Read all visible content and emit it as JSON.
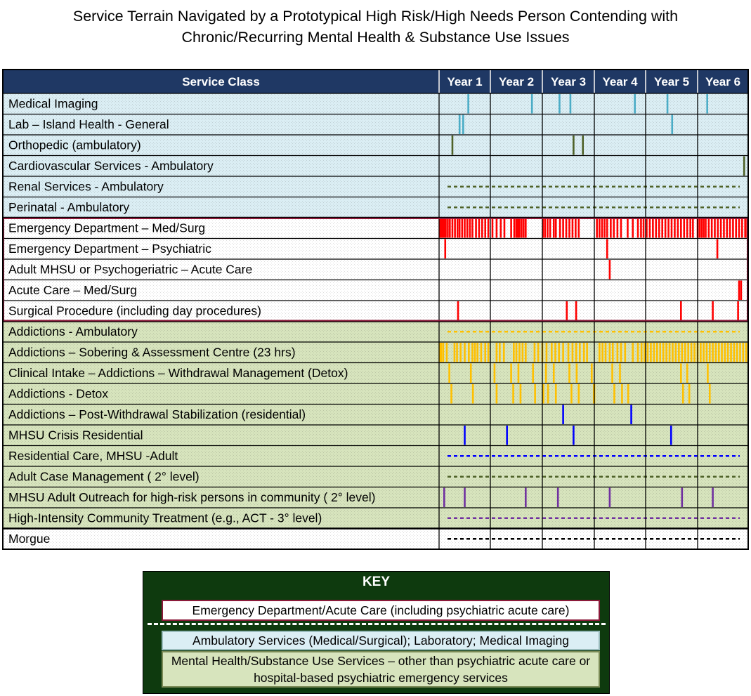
{
  "title": {
    "line1": "Service Terrain Navigated by a Prototypical High Risk/High Needs Person Contending with",
    "line2": "Chronic/Recurring Mental Health & Substance Use Issues"
  },
  "colors": {
    "header_bg": "#1f3864",
    "ambulatory_bg": "#dbeef4",
    "acute_bg": "#ffffff",
    "mhsu_bg": "#d7e4bd",
    "morgue_bg": "#ffffff",
    "acute_border": "#8b1a3a",
    "key_bg": "#0e3a0e"
  },
  "chart_data": {
    "type": "timeline",
    "header": "Service Class",
    "years": [
      "Year 1",
      "Year 2",
      "Year 3",
      "Year 4",
      "Year 5",
      "Year 6"
    ],
    "x_unit": "year",
    "xlim": [
      0,
      6
    ],
    "rows": [
      {
        "label": "Medical Imaging",
        "group": "ambulatory",
        "color": "#4bacc6",
        "events": [
          0.57,
          1.8,
          2.33,
          2.54,
          3.79,
          4.42,
          5.19
        ]
      },
      {
        "label": "Lab – Island Health - General",
        "group": "ambulatory",
        "color": "#4bacc6",
        "events": [
          0.4,
          0.47,
          4.51
        ]
      },
      {
        "label": "Orthopedic (ambulatory)",
        "group": "ambulatory",
        "color": "#4f6228",
        "events": [
          0.26,
          2.6,
          2.78
        ]
      },
      {
        "label": "Cardiovascular Services - Ambulatory",
        "group": "ambulatory",
        "color": "#4f6228",
        "events": [
          5.92
        ]
      },
      {
        "label": "Renal Services - Ambulatory",
        "group": "ambulatory",
        "color": "#4f6228",
        "dashed": true,
        "events": []
      },
      {
        "label": "Perinatal - Ambulatory",
        "group": "ambulatory",
        "color": "#4f6228",
        "dashed": true,
        "events": []
      },
      {
        "label": "Emergency Department – Med/Surg",
        "group": "acute",
        "color": "#ff0000",
        "events": [
          0.01,
          0.04,
          0.07,
          0.1,
          0.13,
          0.17,
          0.21,
          0.26,
          0.31,
          0.36,
          0.4,
          0.45,
          0.5,
          0.55,
          0.6,
          0.65,
          0.72,
          0.78,
          0.84,
          0.9,
          0.96,
          1.04,
          1.12,
          1.2,
          1.27,
          1.4,
          1.46,
          1.5,
          1.53,
          1.56,
          1.6,
          1.64,
          1.68,
          2.01,
          2.05,
          2.1,
          2.15,
          2.22,
          2.26,
          2.34,
          2.4,
          2.46,
          2.52,
          2.58,
          2.64,
          2.7,
          3.05,
          3.1,
          3.15,
          3.2,
          3.25,
          3.32,
          3.38,
          3.45,
          3.52,
          3.65,
          3.75,
          3.85,
          3.91,
          3.96,
          4.02,
          4.08,
          4.14,
          4.2,
          4.26,
          4.32,
          4.38,
          4.44,
          4.5,
          4.56,
          4.62,
          4.68,
          4.74,
          4.8,
          4.86,
          4.91,
          5.0,
          5.04,
          5.08,
          5.12,
          5.16,
          5.22,
          5.28,
          5.34,
          5.4,
          5.46,
          5.52,
          5.58,
          5.64,
          5.7,
          5.76,
          5.82,
          5.88,
          5.94,
          5.98
        ]
      },
      {
        "label": "Emergency Department – Psychiatric",
        "group": "acute",
        "color": "#ff0000",
        "events": [
          0.12,
          3.25,
          5.39
        ]
      },
      {
        "label": "Adult MHSU or Psychogeriatric – Acute Care",
        "group": "acute",
        "color": "#ff0000",
        "events": [
          3.3
        ]
      },
      {
        "label": "Acute Care – Med/Surg",
        "group": "acute",
        "color": "#ff0000",
        "events": [
          5.82,
          5.86
        ]
      },
      {
        "label": "Surgical Procedure (including day procedures)",
        "group": "acute",
        "color": "#ff0000",
        "events": [
          0.37,
          2.47,
          2.65,
          4.68,
          5.3,
          5.8
        ]
      },
      {
        "label": "Addictions - Ambulatory",
        "group": "mhsu",
        "color": "#ffc000",
        "dashed": true,
        "events": []
      },
      {
        "label": "Addictions – Sobering & Assessment Centre (23 hrs)",
        "group": "mhsu",
        "color": "#ffc000",
        "events": [
          0.01,
          0.04,
          0.08,
          0.15,
          0.3,
          0.35,
          0.42,
          0.5,
          0.58,
          0.65,
          0.7,
          0.75,
          0.82,
          0.9,
          0.96,
          1.12,
          1.18,
          1.26,
          1.45,
          1.5,
          1.56,
          1.62,
          1.68,
          1.85,
          1.92,
          2.0,
          2.08,
          2.18,
          2.25,
          2.32,
          2.4,
          2.5,
          2.58,
          2.65,
          2.72,
          2.8,
          2.86,
          3.1,
          3.16,
          3.22,
          3.3,
          3.36,
          3.45,
          3.52,
          3.6,
          3.75,
          3.85,
          3.92,
          3.98,
          4.04,
          4.1,
          4.16,
          4.22,
          4.28,
          4.34,
          4.4,
          4.46,
          4.52,
          4.58,
          4.64,
          4.7,
          4.76,
          4.82,
          4.88,
          4.94,
          5.0,
          5.06,
          5.12,
          5.18,
          5.24,
          5.3,
          5.36,
          5.42,
          5.48,
          5.54,
          5.6,
          5.66,
          5.72,
          5.78,
          5.84,
          5.9,
          5.96
        ]
      },
      {
        "label": "Clinical Intake – Addictions – Withdrawal Management (Detox)",
        "group": "mhsu",
        "color": "#ffc000",
        "events": [
          0.2,
          0.62,
          1.08,
          1.4,
          1.54,
          1.82,
          2.07,
          2.22,
          2.52,
          2.66,
          2.95,
          3.35,
          3.5,
          4.68,
          4.8,
          5.2
        ]
      },
      {
        "label": "Addictions - Detox",
        "group": "mhsu",
        "color": "#ffc000",
        "events": [
          0.24,
          0.66,
          1.12,
          1.44,
          1.58,
          1.86,
          2.02,
          2.11,
          2.26,
          2.56,
          2.7,
          2.99,
          3.0,
          3.39,
          3.54,
          3.66,
          4.72,
          4.84,
          5.24
        ]
      },
      {
        "label": "Addictions – Post-Withdrawal Stabilization (residential)",
        "group": "mhsu",
        "color": "#0000ff",
        "events": [
          2.4,
          3.72
        ]
      },
      {
        "label": "MHSU Crisis Residential",
        "group": "mhsu",
        "color": "#0000ff",
        "events": [
          0.5,
          1.32,
          2.6,
          4.49
        ]
      },
      {
        "label": "Residential Care, MHSU -Adult",
        "group": "mhsu",
        "color": "#0000ff",
        "dashed": true,
        "events": []
      },
      {
        "label": "Adult Case Management ( 2° level)",
        "group": "mhsu",
        "color": "#4f6228",
        "dashed": true,
        "events": []
      },
      {
        "label": "MHSU Adult Outreach for high-risk persons in community  ( 2° level)",
        "group": "mhsu",
        "color": "#7030a0",
        "events": [
          0.1,
          0.5,
          1.68,
          2.3,
          3.3,
          4.7,
          5.3
        ]
      },
      {
        "label": "High-Intensity Community Treatment  (e.g., ACT - 3° level)",
        "group": "mhsu",
        "color": "#7030a0",
        "dashed": true,
        "events": []
      },
      {
        "label": "Morgue",
        "group": "morgue",
        "color": "#000000",
        "dashed": true,
        "events": []
      }
    ]
  },
  "key": {
    "title": "KEY",
    "items": [
      "Emergency Department/Acute Care (including psychiatric acute care)",
      "Ambulatory Services (Medical/Surgical); Laboratory; Medical Imaging",
      "Mental Health/Substance Use Services – other than psychiatric acute care or hospital-based psychiatric emergency services"
    ]
  }
}
